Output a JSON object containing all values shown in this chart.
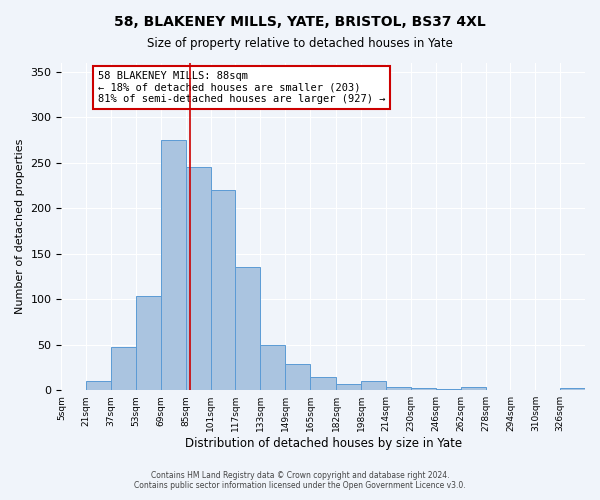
{
  "title": "58, BLAKENEY MILLS, YATE, BRISTOL, BS37 4XL",
  "subtitle": "Size of property relative to detached houses in Yate",
  "xlabel": "Distribution of detached houses by size in Yate",
  "ylabel": "Number of detached properties",
  "bin_labels": [
    "5sqm",
    "21sqm",
    "37sqm",
    "53sqm",
    "69sqm",
    "85sqm",
    "101sqm",
    "117sqm",
    "133sqm",
    "149sqm",
    "165sqm",
    "182sqm",
    "198sqm",
    "214sqm",
    "230sqm",
    "246sqm",
    "262sqm",
    "278sqm",
    "294sqm",
    "310sqm",
    "326sqm"
  ],
  "bin_edges": [
    5,
    21,
    37,
    53,
    69,
    85,
    101,
    117,
    133,
    149,
    165,
    182,
    198,
    214,
    230,
    246,
    262,
    278,
    294,
    310,
    326,
    342
  ],
  "bar_values": [
    0,
    10,
    47,
    104,
    275,
    245,
    220,
    135,
    50,
    29,
    15,
    7,
    10,
    3,
    2,
    1,
    3,
    0,
    0,
    0,
    2
  ],
  "bar_color": "#aac4e0",
  "bar_edge_color": "#5b9bd5",
  "property_line_x": 88,
  "property_line_color": "#cc0000",
  "annotation_text": "58 BLAKENEY MILLS: 88sqm\n← 18% of detached houses are smaller (203)\n81% of semi-detached houses are larger (927) →",
  "annotation_box_color": "#ffffff",
  "annotation_box_edge": "#cc0000",
  "ylim": [
    0,
    360
  ],
  "yticks": [
    0,
    50,
    100,
    150,
    200,
    250,
    300,
    350
  ],
  "footer_line1": "Contains HM Land Registry data © Crown copyright and database right 2024.",
  "footer_line2": "Contains public sector information licensed under the Open Government Licence v3.0.",
  "bg_color": "#f0f4fa",
  "plot_bg_color": "#f0f4fa"
}
